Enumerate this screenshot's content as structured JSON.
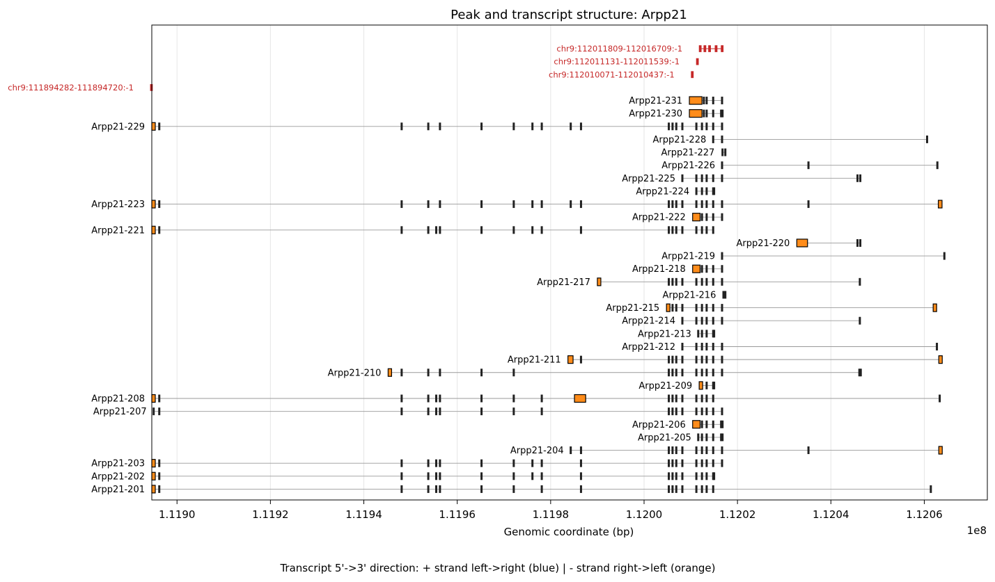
{
  "chart_data": {
    "type": "gene-structure",
    "title": "Peak and transcript structure: Arpp21",
    "xlabel": "Genomic coordinate (bp)",
    "x_offset_label": "1e8",
    "xlim": [
      1.118946,
      1.120735
    ],
    "xticks": [
      1.119,
      1.1192,
      1.1194,
      1.1196,
      1.1198,
      1.12,
      1.1202,
      1.1204,
      1.1206
    ],
    "xtick_labels": [
      "1.1190",
      "1.1192",
      "1.1194",
      "1.1196",
      "1.1198",
      "1.1200",
      "1.1202",
      "1.1204",
      "1.1206"
    ],
    "grid": true,
    "caption": "Transcript 5'->3' direction: + strand left->right (blue) | - strand right->left (orange)",
    "colors": {
      "peak": "#c62828",
      "utr": "#ff8c1a",
      "exon": "#222222",
      "intron": "#999999",
      "grid": "#e6e6e6"
    },
    "peaks": [
      {
        "label": "chr9:112011809-112016709:-1",
        "row": 0,
        "exons": [
          [
            1.120118,
            1.120122
          ],
          [
            1.120128,
            1.120132
          ],
          [
            1.120138,
            1.120142
          ],
          [
            1.120152,
            1.120156
          ],
          [
            1.120165,
            1.120169
          ]
        ]
      },
      {
        "label": "chr9:112011131-112011539:-1",
        "row": 1,
        "exons": [
          [
            1.120112,
            1.120116
          ]
        ]
      },
      {
        "label": "chr9:112010071-112010437:-1",
        "row": 2,
        "exons": [
          [
            1.120101,
            1.120105
          ]
        ]
      },
      {
        "label": "chr9:111894282-111894720:-1",
        "row": 3,
        "exons": [
          [
            1.118943,
            1.118947
          ]
        ]
      }
    ],
    "exon_sets": {
      "long_a": [
        1.11895,
        1.118962,
        1.119481,
        1.119538,
        1.119563,
        1.119652,
        1.119721,
        1.119761,
        1.119781,
        1.119843,
        1.119865,
        1.120053,
        1.120061,
        1.120069,
        1.120082,
        1.120112,
        1.120124,
        1.120134,
        1.120148,
        1.120167
      ],
      "core": [
        1.120053,
        1.120061,
        1.120069,
        1.120082,
        1.120112,
        1.120124,
        1.120134,
        1.120148,
        1.120167
      ]
    },
    "transcripts": [
      {
        "name": "Arpp21-231",
        "row": 4,
        "start": 1.120097,
        "end": 1.120167,
        "utr": [
          [
            1.120097,
            1.120124
          ]
        ],
        "exons": [
          1.120128,
          1.120134,
          1.120148,
          1.120167
        ]
      },
      {
        "name": "Arpp21-230",
        "row": 5,
        "start": 1.120097,
        "end": 1.120167,
        "utr": [
          [
            1.120097,
            1.120124
          ]
        ],
        "exons": [
          1.120128,
          1.120134,
          1.120148,
          1.120165,
          1.120168
        ]
      },
      {
        "name": "Arpp21-229",
        "row": 6,
        "start": 1.118946,
        "end": 1.120167,
        "utr": [
          [
            1.118946,
            1.118953
          ]
        ],
        "exons": [
          1.118962,
          1.119481,
          1.119538,
          1.119563,
          1.119652,
          1.119721,
          1.119761,
          1.119781,
          1.119843,
          1.119865,
          1.120053,
          1.120061,
          1.120069,
          1.120082,
          1.120112,
          1.120124,
          1.120134,
          1.120148,
          1.120167
        ]
      },
      {
        "name": "Arpp21-228",
        "row": 7,
        "start": 1.120148,
        "end": 1.120606,
        "utr": [],
        "exons": [
          1.120148,
          1.120167,
          1.120606
        ]
      },
      {
        "name": "Arpp21-227",
        "row": 8,
        "start": 1.120166,
        "end": 1.120175,
        "utr": [],
        "exons": [
          1.120168,
          1.120174
        ]
      },
      {
        "name": "Arpp21-226",
        "row": 9,
        "start": 1.120167,
        "end": 1.120628,
        "utr": [],
        "exons": [
          1.120167,
          1.120352,
          1.120628
        ]
      },
      {
        "name": "Arpp21-225",
        "row": 10,
        "start": 1.120082,
        "end": 1.120463,
        "utr": [],
        "exons": [
          1.120082,
          1.120112,
          1.120124,
          1.120134,
          1.120148,
          1.120167,
          1.120457,
          1.120463
        ]
      },
      {
        "name": "Arpp21-224",
        "row": 11,
        "start": 1.120112,
        "end": 1.12015,
        "utr": [],
        "exons": [
          1.120112,
          1.120124,
          1.120134,
          1.120148,
          1.12015
        ]
      },
      {
        "name": "Arpp21-223",
        "row": 12,
        "start": 1.118946,
        "end": 1.120638,
        "utr": [
          [
            1.118946,
            1.118953
          ],
          [
            1.12063,
            1.120638
          ]
        ],
        "exons": [
          1.118962,
          1.119481,
          1.119538,
          1.119563,
          1.119652,
          1.119721,
          1.119761,
          1.119781,
          1.119843,
          1.119865,
          1.120053,
          1.120061,
          1.120069,
          1.120082,
          1.120112,
          1.120124,
          1.120134,
          1.120148,
          1.120167,
          1.120352
        ]
      },
      {
        "name": "Arpp21-222",
        "row": 13,
        "start": 1.120104,
        "end": 1.120167,
        "utr": [
          [
            1.120104,
            1.12012
          ]
        ],
        "exons": [
          1.120124,
          1.120134,
          1.120148,
          1.120167
        ]
      },
      {
        "name": "Arpp21-221",
        "row": 14,
        "start": 1.118946,
        "end": 1.120148,
        "utr": [
          [
            1.118946,
            1.118953
          ]
        ],
        "exons": [
          1.118962,
          1.119481,
          1.119538,
          1.119555,
          1.119563,
          1.119652,
          1.119721,
          1.119761,
          1.119781,
          1.119865,
          1.120053,
          1.120061,
          1.120069,
          1.120082,
          1.120112,
          1.120124,
          1.120134,
          1.120148
        ]
      },
      {
        "name": "Arpp21-220",
        "row": 15,
        "start": 1.120327,
        "end": 1.120463,
        "utr": [
          [
            1.120327,
            1.12035
          ]
        ],
        "exons": [
          1.120457,
          1.120463
        ]
      },
      {
        "name": "Arpp21-219",
        "row": 16,
        "start": 1.120167,
        "end": 1.120643,
        "utr": [],
        "exons": [
          1.120167,
          1.120643
        ]
      },
      {
        "name": "Arpp21-218",
        "row": 17,
        "start": 1.120104,
        "end": 1.120167,
        "utr": [
          [
            1.120104,
            1.12012
          ]
        ],
        "exons": [
          1.120124,
          1.120134,
          1.120148,
          1.120167
        ]
      },
      {
        "name": "Arpp21-217",
        "row": 18,
        "start": 1.1199,
        "end": 1.120462,
        "utr": [
          [
            1.1199,
            1.119906
          ]
        ],
        "exons": [
          1.120053,
          1.120061,
          1.120069,
          1.120082,
          1.120112,
          1.120124,
          1.120134,
          1.120148,
          1.120167,
          1.120462
        ]
      },
      {
        "name": "Arpp21-216",
        "row": 19,
        "start": 1.120169,
        "end": 1.120175,
        "utr": [],
        "exons": [
          1.12017,
          1.120174
        ]
      },
      {
        "name": "Arpp21-215",
        "row": 20,
        "start": 1.120048,
        "end": 1.120626,
        "utr": [
          [
            1.120048,
            1.120055
          ],
          [
            1.120619,
            1.120626
          ]
        ],
        "exons": [
          1.120061,
          1.120069,
          1.120082,
          1.120112,
          1.120124,
          1.120134,
          1.120148,
          1.120167
        ]
      },
      {
        "name": "Arpp21-214",
        "row": 21,
        "start": 1.120082,
        "end": 1.120462,
        "utr": [],
        "exons": [
          1.120082,
          1.120112,
          1.120124,
          1.120134,
          1.120148,
          1.120167,
          1.120462
        ]
      },
      {
        "name": "Arpp21-213",
        "row": 22,
        "start": 1.120116,
        "end": 1.12015,
        "utr": [],
        "exons": [
          1.120116,
          1.120124,
          1.120134,
          1.120148,
          1.12015
        ]
      },
      {
        "name": "Arpp21-212",
        "row": 23,
        "start": 1.120082,
        "end": 1.120627,
        "utr": [],
        "exons": [
          1.120082,
          1.120112,
          1.120124,
          1.120134,
          1.120148,
          1.120167,
          1.120627
        ]
      },
      {
        "name": "Arpp21-211",
        "row": 24,
        "start": 1.119837,
        "end": 1.120638,
        "utr": [
          [
            1.119837,
            1.119848
          ],
          [
            1.120631,
            1.120638
          ]
        ],
        "exons": [
          1.119865,
          1.120053,
          1.120061,
          1.120069,
          1.120082,
          1.120112,
          1.120124,
          1.120134,
          1.120148,
          1.120167
        ]
      },
      {
        "name": "Arpp21-210",
        "row": 25,
        "start": 1.119452,
        "end": 1.120462,
        "utr": [
          [
            1.119452,
            1.119458
          ]
        ],
        "exons": [
          1.119481,
          1.119538,
          1.119563,
          1.119652,
          1.119721,
          1.120053,
          1.120061,
          1.120069,
          1.120082,
          1.120112,
          1.120124,
          1.120134,
          1.120148,
          1.120167,
          1.120461,
          1.120464
        ]
      },
      {
        "name": "Arpp21-209",
        "row": 26,
        "start": 1.120118,
        "end": 1.12015,
        "utr": [
          [
            1.120118,
            1.120125
          ]
        ],
        "exons": [
          1.120134,
          1.120148,
          1.12015
        ]
      },
      {
        "name": "Arpp21-208",
        "row": 27,
        "start": 1.118946,
        "end": 1.120633,
        "utr": [
          [
            1.118946,
            1.118953
          ],
          [
            1.119851,
            1.119875
          ]
        ],
        "exons": [
          1.118962,
          1.119481,
          1.119538,
          1.119555,
          1.119563,
          1.119652,
          1.119721,
          1.119781,
          1.120053,
          1.120061,
          1.120069,
          1.120082,
          1.120112,
          1.120124,
          1.120134,
          1.120148,
          1.120633
        ]
      },
      {
        "name": "Arpp21-207",
        "row": 28,
        "start": 1.11895,
        "end": 1.120167,
        "utr": [],
        "exons": [
          1.11895,
          1.118962,
          1.119481,
          1.119538,
          1.119555,
          1.119563,
          1.119652,
          1.119721,
          1.119781,
          1.120053,
          1.120061,
          1.120069,
          1.120082,
          1.120112,
          1.120124,
          1.120134,
          1.120148,
          1.120167
        ]
      },
      {
        "name": "Arpp21-206",
        "row": 29,
        "start": 1.120104,
        "end": 1.120167,
        "utr": [
          [
            1.120104,
            1.12012
          ]
        ],
        "exons": [
          1.120124,
          1.120134,
          1.120148,
          1.120165,
          1.120168
        ]
      },
      {
        "name": "Arpp21-205",
        "row": 30,
        "start": 1.120116,
        "end": 1.120167,
        "utr": [],
        "exons": [
          1.120116,
          1.120124,
          1.120134,
          1.120148,
          1.120165,
          1.120168
        ]
      },
      {
        "name": "Arpp21-204",
        "row": 31,
        "start": 1.119843,
        "end": 1.120638,
        "utr": [
          [
            1.120631,
            1.120638
          ]
        ],
        "exons": [
          1.119843,
          1.119865,
          1.120053,
          1.120061,
          1.120069,
          1.120082,
          1.120112,
          1.120124,
          1.120134,
          1.120148,
          1.120167,
          1.120352
        ]
      },
      {
        "name": "Arpp21-203",
        "row": 32,
        "start": 1.118946,
        "end": 1.120167,
        "utr": [
          [
            1.118946,
            1.118953
          ]
        ],
        "exons": [
          1.118962,
          1.119481,
          1.119538,
          1.119555,
          1.119563,
          1.119652,
          1.119721,
          1.119761,
          1.119781,
          1.119865,
          1.120053,
          1.120061,
          1.120069,
          1.120082,
          1.120112,
          1.120124,
          1.120134,
          1.120148,
          1.120167
        ]
      },
      {
        "name": "Arpp21-202",
        "row": 33,
        "start": 1.118946,
        "end": 1.12015,
        "utr": [
          [
            1.118946,
            1.118953
          ]
        ],
        "exons": [
          1.118962,
          1.119481,
          1.119538,
          1.119555,
          1.119563,
          1.119652,
          1.119721,
          1.119761,
          1.119781,
          1.119865,
          1.120053,
          1.120061,
          1.120069,
          1.120082,
          1.120112,
          1.120124,
          1.120134,
          1.120148,
          1.12015
        ]
      },
      {
        "name": "Arpp21-201",
        "row": 34,
        "start": 1.118946,
        "end": 1.120614,
        "utr": [
          [
            1.118946,
            1.118953
          ]
        ],
        "exons": [
          1.118962,
          1.119481,
          1.119538,
          1.119555,
          1.119563,
          1.119652,
          1.119721,
          1.119781,
          1.119865,
          1.120053,
          1.120061,
          1.120069,
          1.120082,
          1.120112,
          1.120124,
          1.120134,
          1.120148,
          1.120614
        ]
      }
    ]
  }
}
